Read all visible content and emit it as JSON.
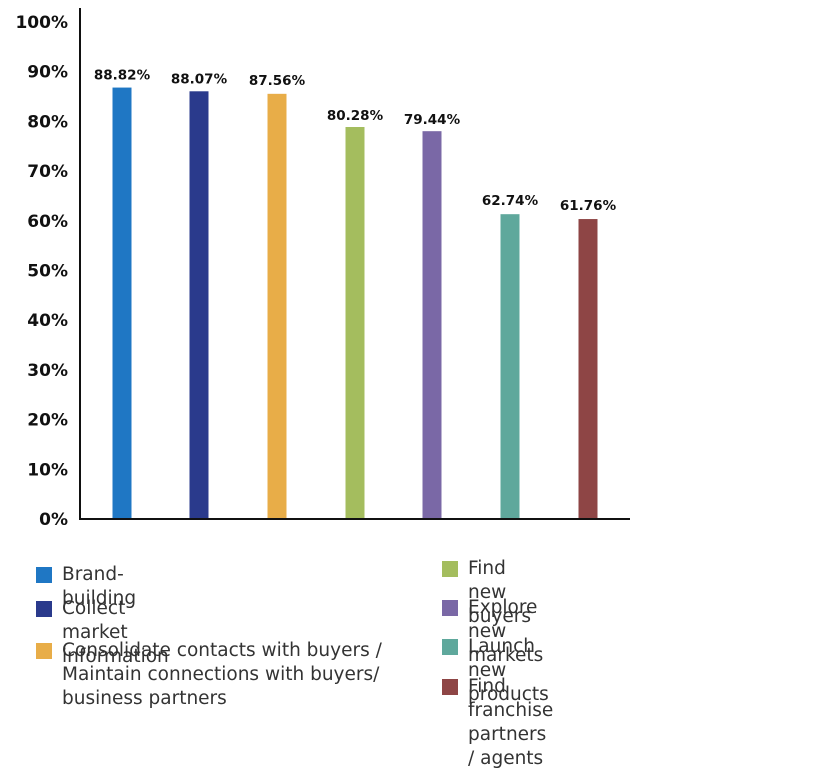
{
  "chart_data": {
    "type": "bar",
    "categories": [
      "Brand-building",
      "Collect market information",
      "Consolidate contacts with buyers / Maintain connections with buyers/ business partners",
      "Find new buyers",
      "Explore new markets",
      "Launch new products",
      "Find franchise partners / agents"
    ],
    "values": [
      88.82,
      88.07,
      87.56,
      80.28,
      79.44,
      62.74,
      61.76
    ],
    "data_labels": [
      "88.82%",
      "88.07%",
      "87.56%",
      "80.28%",
      "79.44%",
      "62.74%",
      "61.76%"
    ],
    "colors": [
      "#1f77c4",
      "#2a3a8c",
      "#e8ad48",
      "#a4bd5e",
      "#7a68a6",
      "#5fa89c",
      "#8e4545"
    ],
    "y_ticks": [
      "0%",
      "10%",
      "20%",
      "30%",
      "40%",
      "50%",
      "60%",
      "70%",
      "80%",
      "90%",
      "100%"
    ],
    "ylim": [
      0,
      100
    ],
    "grid": false,
    "legend_position": "bottom"
  },
  "legend": [
    {
      "label": "Brand-building",
      "color": "#1f77c4"
    },
    {
      "label": "Collect market information",
      "color": "#2a3a8c"
    },
    {
      "label": "Consolidate contacts with buyers / Maintain connections with buyers/ business partners",
      "color": "#e8ad48"
    },
    {
      "label": "Find new buyers",
      "color": "#a4bd5e"
    },
    {
      "label": "Explore new markets",
      "color": "#7a68a6"
    },
    {
      "label": "Launch new products",
      "color": "#5fa89c"
    },
    {
      "label": "Find franchise partners / agents",
      "color": "#8e4545"
    }
  ]
}
